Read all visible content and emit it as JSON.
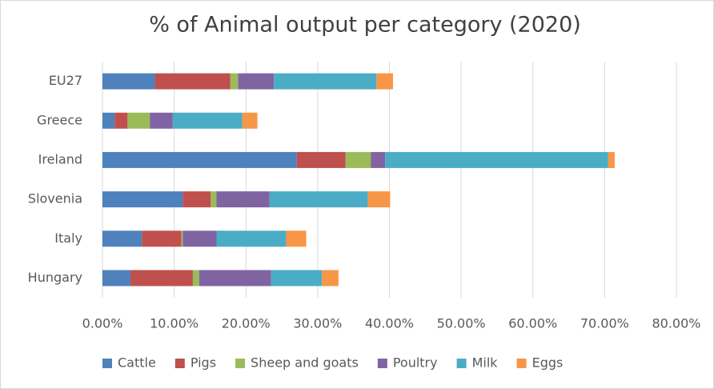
{
  "chart_data": {
    "type": "stacked_bar_horizontal",
    "title": "% of Animal output per category (2020)",
    "categories": [
      "EU27",
      "Greece",
      "Ireland",
      "Slovenia",
      "Italy",
      "Hungary"
    ],
    "series": [
      {
        "name": "Cattle",
        "color": "#4f81bd",
        "values": [
          7.3,
          1.7,
          27.1,
          11.2,
          5.5,
          3.9
        ]
      },
      {
        "name": "Pigs",
        "color": "#c0504d",
        "values": [
          10.5,
          1.8,
          6.8,
          3.9,
          5.5,
          8.7
        ]
      },
      {
        "name": "Sheep and goats",
        "color": "#9bbb59",
        "values": [
          1.1,
          3.1,
          3.5,
          0.8,
          0.2,
          0.9
        ]
      },
      {
        "name": "Poultry",
        "color": "#8064a2",
        "values": [
          5.0,
          3.2,
          2.0,
          7.4,
          4.7,
          10.0
        ]
      },
      {
        "name": "Milk",
        "color": "#4bacc6",
        "values": [
          14.3,
          9.7,
          31.1,
          13.7,
          9.7,
          7.1
        ]
      },
      {
        "name": "Eggs",
        "color": "#f79646",
        "values": [
          2.3,
          2.1,
          0.9,
          3.1,
          2.8,
          2.3
        ]
      }
    ],
    "xlim": [
      0,
      80
    ],
    "xticks": [
      {
        "value": 0,
        "label": "0.00%"
      },
      {
        "value": 10,
        "label": "10.00%"
      },
      {
        "value": 20,
        "label": "20.00%"
      },
      {
        "value": 30,
        "label": "30.00%"
      },
      {
        "value": 40,
        "label": "40.00%"
      },
      {
        "value": 50,
        "label": "50.00%"
      },
      {
        "value": 60,
        "label": "60.00%"
      },
      {
        "value": 70,
        "label": "70.00%"
      },
      {
        "value": 80,
        "label": "80.00%"
      }
    ],
    "grid": true,
    "legend": "bottom"
  }
}
